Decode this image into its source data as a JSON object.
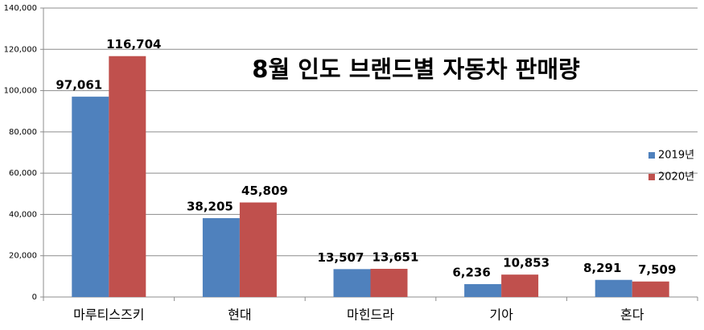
{
  "chart_data": {
    "type": "bar",
    "title": "8월 인도 브랜드별 자동차 판매량",
    "categories": [
      "마루티스즈키",
      "현대",
      "마힌드라",
      "기아",
      "혼다"
    ],
    "series": [
      {
        "name": "2019년",
        "color": "#4f81bd",
        "values": [
          97061,
          38205,
          13507,
          6236,
          8291
        ],
        "value_labels": [
          "97,061",
          "38,205",
          "13,507",
          "6,236",
          "8,291"
        ]
      },
      {
        "name": "2020년",
        "color": "#c0504d",
        "values": [
          116704,
          45809,
          13651,
          10853,
          7509
        ],
        "value_labels": [
          "116,704",
          "45,809",
          "13,651",
          "10,853",
          "7,509"
        ]
      }
    ],
    "ylim": [
      0,
      140000
    ],
    "yticks": [
      0,
      {
        "value": 20000,
        "label": "20,000"
      },
      {
        "value": 40000,
        "label": "40,000"
      },
      {
        "value": 60000,
        "label": "60,000"
      },
      {
        "value": 80000,
        "label": "80,000"
      },
      {
        "value": 100000,
        "label": "100,000"
      },
      {
        "value": 120000,
        "label": "120,000"
      },
      {
        "value": 140000,
        "label": "140,000"
      }
    ],
    "grid": true,
    "legend": "right"
  }
}
